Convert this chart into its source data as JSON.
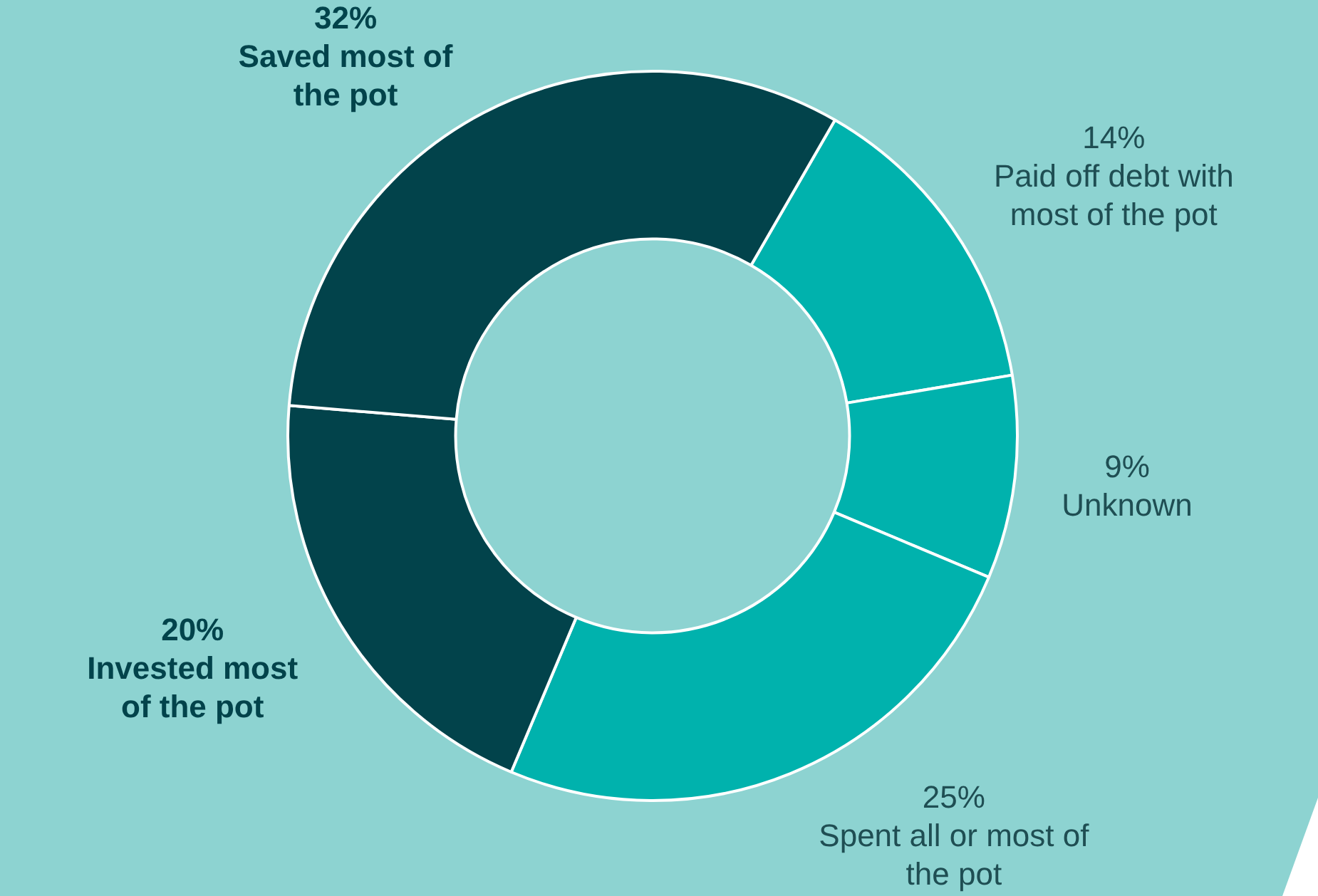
{
  "chart_data": {
    "type": "donut",
    "categories": [
      "Paid off debt with most of the pot",
      "Unknown",
      "Spent all or most of the pot",
      "Invested most of the pot",
      "Saved most of the pot"
    ],
    "values": [
      14,
      9,
      25,
      20,
      32
    ],
    "value_labels": [
      "14%",
      "9%",
      "25%",
      "20%",
      "32%"
    ],
    "colors": [
      "#00b2ad",
      "#00b2ad",
      "#00b2ad",
      "#02434b",
      "#02434b"
    ],
    "legend": false
  }
}
